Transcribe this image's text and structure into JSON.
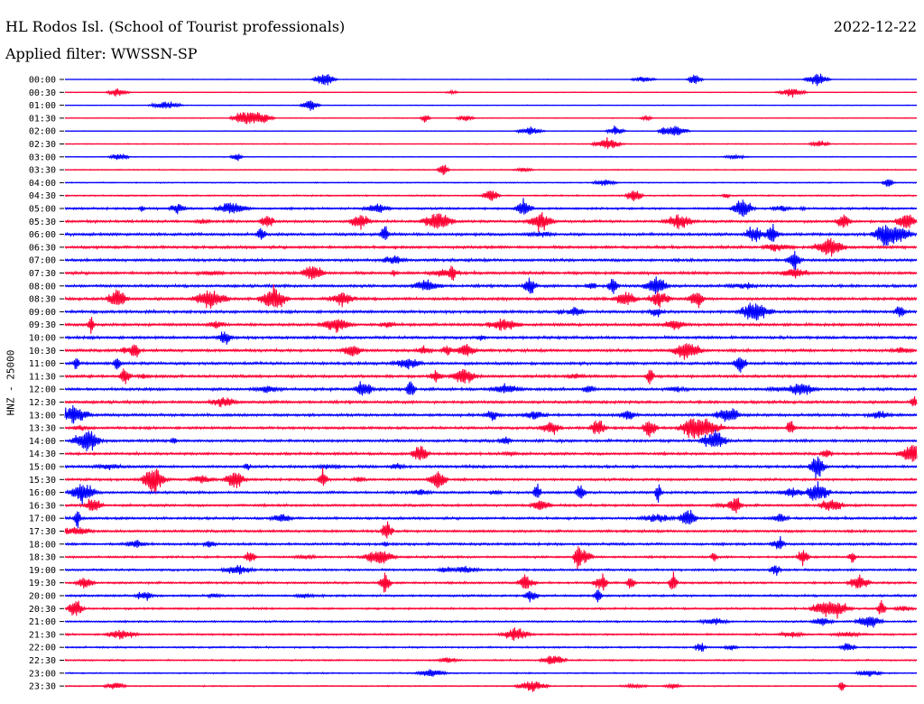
{
  "header": {
    "station": "HL Rodos Isl. (School of Tourist professionals)",
    "date": "2022-12-22",
    "filter": "Applied filter: WWSSN-SP"
  },
  "chart_data": {
    "type": "line",
    "title": "HL Rodos Isl. (School of Tourist professionals)",
    "ylabel": "HNZ - 25000",
    "trace_colors": [
      "#0000ff",
      "#ff0033"
    ],
    "row_labels": [
      "00:00",
      "00:30",
      "01:00",
      "01:30",
      "02:00",
      "02:30",
      "03:00",
      "03:30",
      "04:00",
      "04:30",
      "05:00",
      "05:30",
      "06:00",
      "06:30",
      "07:00",
      "07:30",
      "08:00",
      "08:30",
      "09:00",
      "09:30",
      "10:00",
      "10:30",
      "11:00",
      "11:30",
      "12:00",
      "12:30",
      "13:00",
      "13:30",
      "14:00",
      "14:30",
      "15:00",
      "15:30",
      "16:00",
      "16:30",
      "17:00",
      "17:30",
      "18:00",
      "18:30",
      "19:00",
      "19:30",
      "20:00",
      "20:30",
      "21:00",
      "21:30",
      "22:00",
      "22:30",
      "23:00",
      "23:30"
    ],
    "relative_noise_level": [
      0.1,
      0.12,
      0.12,
      0.12,
      0.12,
      0.14,
      0.14,
      0.16,
      0.18,
      0.24,
      0.35,
      0.4,
      0.45,
      0.45,
      0.45,
      0.45,
      0.45,
      0.45,
      0.45,
      0.45,
      0.45,
      0.45,
      0.45,
      0.45,
      0.45,
      0.45,
      0.45,
      0.42,
      0.42,
      0.42,
      0.42,
      0.4,
      0.4,
      0.4,
      0.4,
      0.4,
      0.4,
      0.35,
      0.35,
      0.35,
      0.35,
      0.32,
      0.3,
      0.3,
      0.28,
      0.25,
      0.22,
      0.2
    ]
  }
}
